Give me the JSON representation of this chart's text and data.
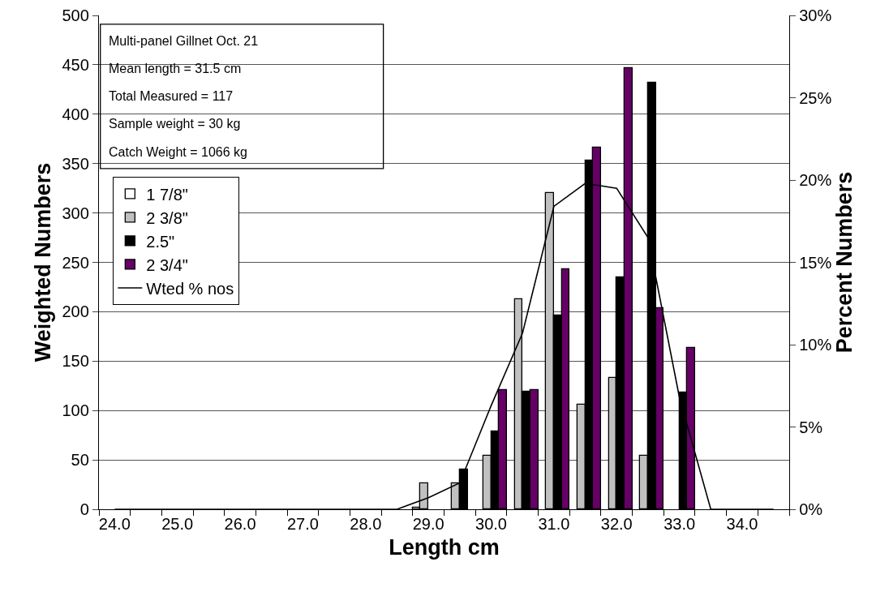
{
  "chart_data": {
    "type": "bar",
    "xlabel": "Length cm",
    "ylabel": "Weighted Numbers",
    "y2label": "Percent Numbers",
    "categories": [
      "24.0",
      null,
      "25.0",
      null,
      "26.0",
      null,
      "27.0",
      null,
      "28.0",
      null,
      "29.0",
      null,
      "30.0",
      null,
      "31.0",
      null,
      "32.0",
      null,
      "33.0",
      null,
      "34.0",
      null
    ],
    "series": [
      {
        "name": "1 7/8\"",
        "color": "#ffffff",
        "values": [
          null,
          null,
          null,
          null,
          null,
          null,
          null,
          null,
          null,
          null,
          2,
          null,
          null,
          null,
          null,
          null,
          null,
          null,
          null,
          null,
          null,
          null
        ]
      },
      {
        "name": "2 3/8\"",
        "color": "#c0c0c0",
        "values": [
          null,
          null,
          null,
          null,
          null,
          null,
          null,
          null,
          null,
          null,
          26,
          26,
          54,
          213,
          320,
          106,
          133,
          54,
          null,
          null,
          null,
          null
        ]
      },
      {
        "name": "2.5\"",
        "color": "#000000",
        "values": [
          null,
          null,
          null,
          null,
          null,
          null,
          null,
          null,
          null,
          null,
          null,
          40,
          79,
          119,
          196,
          353,
          235,
          432,
          118,
          null,
          null,
          null
        ]
      },
      {
        "name": "2 3/4\"",
        "color": "#660066",
        "values": [
          null,
          null,
          null,
          null,
          null,
          null,
          null,
          null,
          null,
          null,
          null,
          null,
          121,
          121,
          243,
          366,
          447,
          204,
          163,
          null,
          null,
          null
        ]
      },
      {
        "name": "Wted % nos",
        "type": "line",
        "axis": "y2",
        "color": "#000000",
        "values": [
          0,
          0,
          0,
          0,
          0,
          0,
          0,
          0,
          0,
          0,
          0.7,
          1.6,
          6.3,
          10.7,
          18.4,
          19.8,
          19.5,
          16.5,
          6.8,
          0,
          0,
          0
        ]
      }
    ],
    "ylim": [
      0,
      500
    ],
    "yticks": [
      0,
      50,
      100,
      150,
      200,
      250,
      300,
      350,
      400,
      450,
      500
    ],
    "y2lim": [
      0,
      30
    ],
    "y2ticks": [
      {
        "value": 0,
        "label": "0%"
      },
      {
        "value": 5,
        "label": "5%"
      },
      {
        "value": 10,
        "label": "10%"
      },
      {
        "value": 15,
        "label": "15%"
      },
      {
        "value": 20,
        "label": "20%"
      },
      {
        "value": 25,
        "label": "25%"
      },
      {
        "value": 30,
        "label": "30%"
      }
    ],
    "grid": "y",
    "legend": "left",
    "marker": "none",
    "line_style": "solid",
    "annotations": [
      "Multi-panel Gillnet Oct. 21",
      "Mean length = 31.5 cm",
      "Total Measured = 117",
      "Sample weight = 30 kg",
      "Catch Weight = 1066 kg"
    ]
  }
}
